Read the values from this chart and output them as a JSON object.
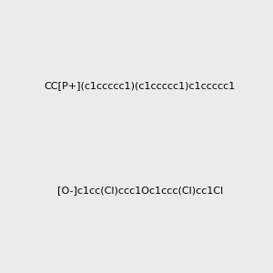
{
  "background_color": "#ebebeb",
  "molecule1_smiles": "CC[P+](c1ccccc1)(c1ccccc1)c1ccccc1",
  "molecule2_smiles": "O-(c1cc(Cl)ccc1Oc1ccc(Cl)cc1Cl)",
  "anion_smiles": "[O-]c1cc(Cl)ccc1Oc1ccc(Cl)cc1Cl",
  "cation_smiles": "CC[P+](c1ccccc1)(c1ccccc1)c1ccccc1",
  "figsize": [
    3.0,
    3.0
  ],
  "dpi": 100
}
